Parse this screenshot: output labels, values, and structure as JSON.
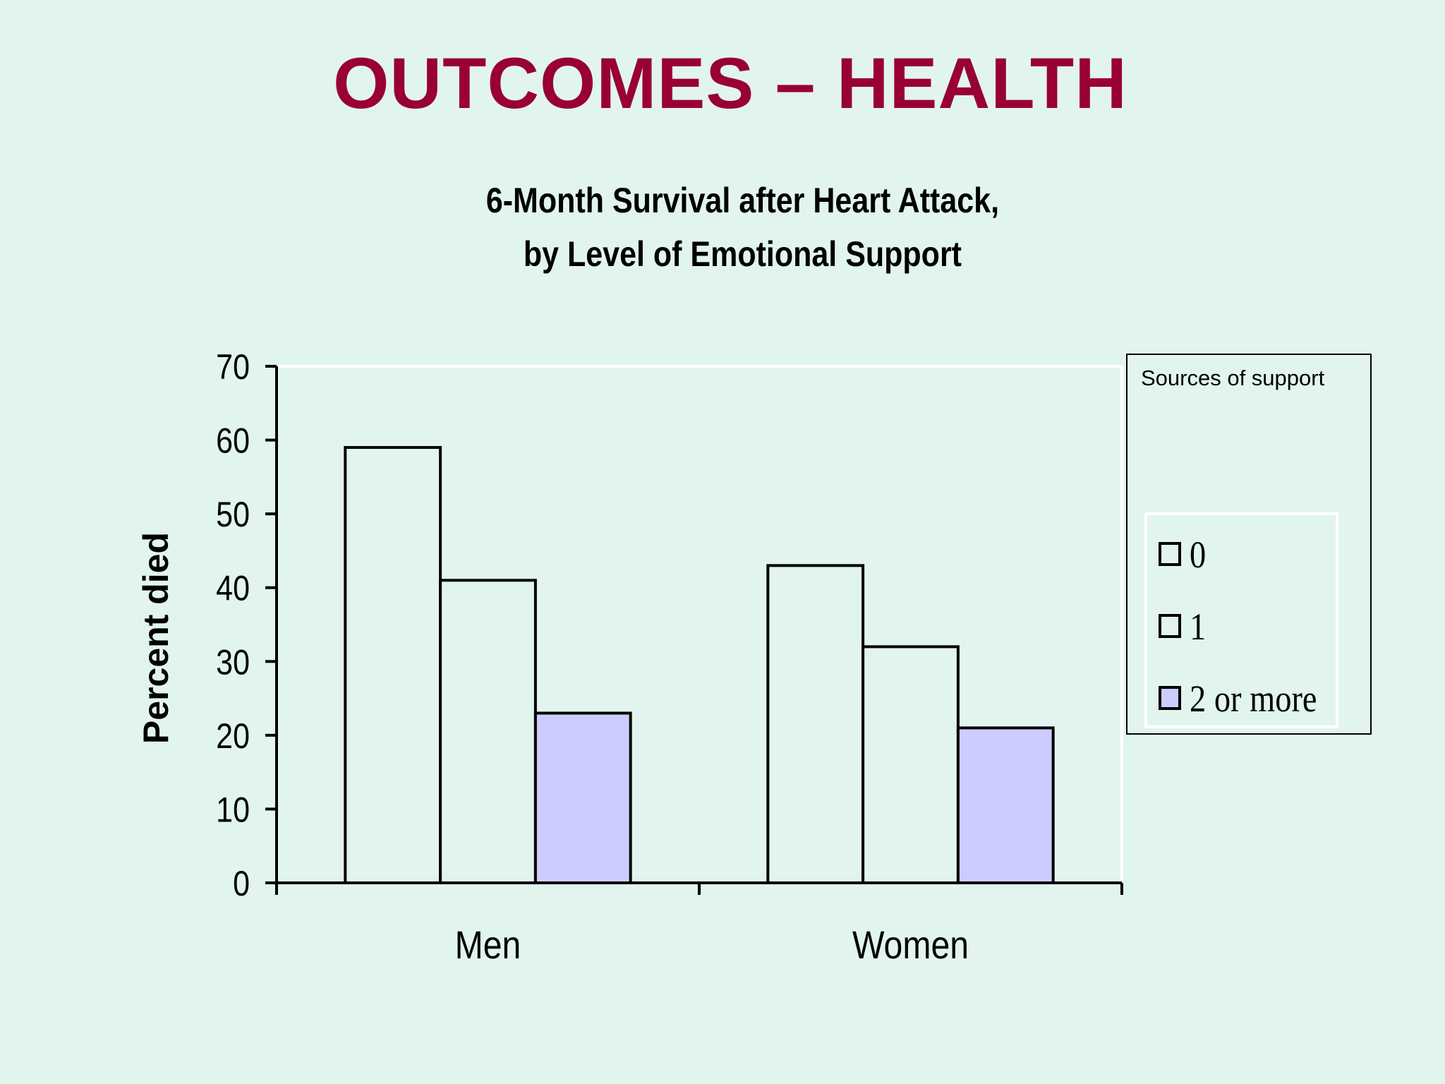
{
  "slide": {
    "title": "OUTCOMES – HEALTH"
  },
  "chart_data": {
    "type": "bar",
    "title": "6-Month Survival after Heart Attack,",
    "subtitle": "by Level of Emotional Support",
    "xlabel": "",
    "ylabel": "Percent died",
    "ylim": [
      0,
      70
    ],
    "yticks": [
      "0",
      "10",
      "20",
      "30",
      "40",
      "50",
      "60",
      "70"
    ],
    "categories": [
      "Men",
      "Women"
    ],
    "legend_title": "Sources of support",
    "legend_placement": "right",
    "grid": false,
    "series": [
      {
        "name": "0",
        "values": [
          59,
          43
        ],
        "color": "#e1f5ee"
      },
      {
        "name": "1",
        "values": [
          41,
          32
        ],
        "color": "#e1f5ee"
      },
      {
        "name": "2 or more",
        "values": [
          23,
          21
        ],
        "color": "#ccccff"
      }
    ]
  }
}
